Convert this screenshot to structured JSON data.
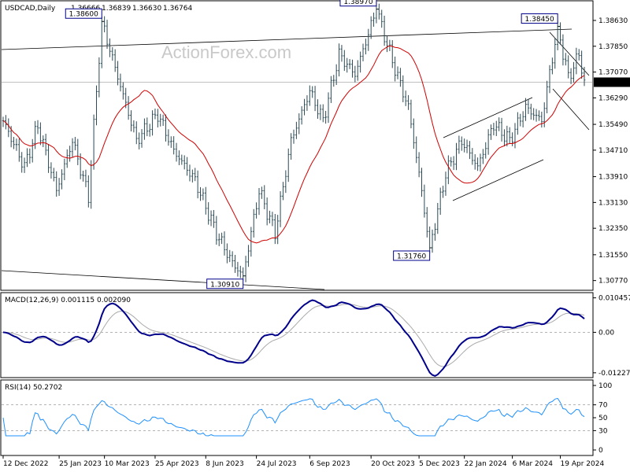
{
  "chart_data": [
    {
      "panel": "price",
      "type": "ohlc",
      "title": "USDCAD,Daily",
      "ohlc_header": [
        "1.36666",
        "1.36839",
        "1.36630",
        "1.36764"
      ],
      "ylim": [
        1.305,
        1.392
      ],
      "yticks": [
        "1.38630",
        "1.37850",
        "1.37070",
        "1.36290",
        "1.35490",
        "1.34710",
        "1.33910",
        "1.33130",
        "1.32350",
        "1.31550",
        "1.30770"
      ],
      "ytick_values": [
        1.3863,
        1.3785,
        1.3707,
        1.3629,
        1.3549,
        1.3471,
        1.3391,
        1.3313,
        1.3235,
        1.3155,
        1.3077
      ],
      "last_price": "1.36764",
      "last_value": 1.36764,
      "annotations": [
        {
          "label": "1.38600",
          "bar": 37,
          "value": 1.386,
          "side": "above"
        },
        {
          "label": "1.30910",
          "bar": 90,
          "value": 1.3091,
          "side": "below"
        },
        {
          "label": "1.38970",
          "bar": 140,
          "value": 1.3897,
          "side": "above"
        },
        {
          "label": "1.31760",
          "bar": 160,
          "value": 1.3176,
          "side": "below"
        },
        {
          "label": "1.38450",
          "bar": 208,
          "value": 1.3845,
          "side": "above"
        }
      ],
      "moving_average_color": "#d00000",
      "bar_color": "#2b4a55",
      "watermark": "ActionForex.com"
    },
    {
      "panel": "macd",
      "type": "line",
      "title": "MACD(12,26,9) 0.001115 0.002090",
      "ylim": [
        -0.0135,
        0.0118
      ],
      "yticks": [
        "0.010457",
        "0.00",
        "-0.012276"
      ],
      "ytick_values": [
        0.010457,
        0.0,
        -0.012276
      ],
      "macd_color": "#00008b",
      "signal_color": "#aaaaaa"
    },
    {
      "panel": "rsi",
      "type": "line",
      "title": "RSI(14) 50.2702",
      "ylim": [
        0,
        100
      ],
      "yticks": [
        "100",
        "70",
        "50",
        "30",
        "0"
      ],
      "ytick_values": [
        100,
        70,
        50,
        30,
        0
      ],
      "levels": [
        70,
        30
      ],
      "line_color": "#1e90ff"
    },
    {
      "panel": "dates",
      "type": "axis",
      "x_labels": [
        "12 Dec 2022",
        "25 Jan 2023",
        "10 Mar 2023",
        "25 Apr 2023",
        "8 Jun 2023",
        "24 Jul 2023",
        "6 Sep 2023",
        "20 Oct 2023",
        "5 Dec 2023",
        "22 Jan 2024",
        "6 Mar 2024",
        "19 Apr 2024"
      ],
      "x_label_bars": [
        0,
        21,
        38,
        57,
        76,
        95,
        115,
        138,
        156,
        173,
        191,
        209
      ],
      "bar_count": 219
    }
  ]
}
